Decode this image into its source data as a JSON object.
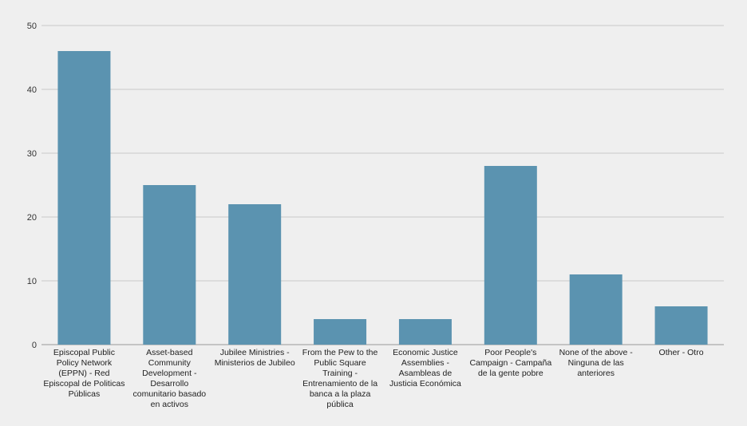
{
  "chart_data": {
    "type": "bar",
    "title": "",
    "xlabel": "",
    "ylabel": "",
    "ylim": [
      0,
      50
    ],
    "yticks": [
      0,
      10,
      20,
      30,
      40,
      50
    ],
    "grid": true,
    "bar_color": "#5b93b0",
    "categories": [
      "Episcopal Public Policy Network (EPPN) - Red Episcopal de Politicas Públicas",
      "Asset-based Community Development - Desarrollo comunitario basado en activos",
      "Jubilee Ministries - Ministerios de Jubileo",
      "From the Pew to the Public Square Training - Entrenamiento de la banca a la plaza pública",
      "Economic Justice Assemblies - Asambleas de Justicia Económica",
      "Poor People's Campaign - Campaña de la gente pobre",
      "None of the above - Ninguna de las anteriores",
      "Other - Otro"
    ],
    "values": [
      46,
      25,
      22,
      4,
      4,
      28,
      11,
      6
    ]
  }
}
